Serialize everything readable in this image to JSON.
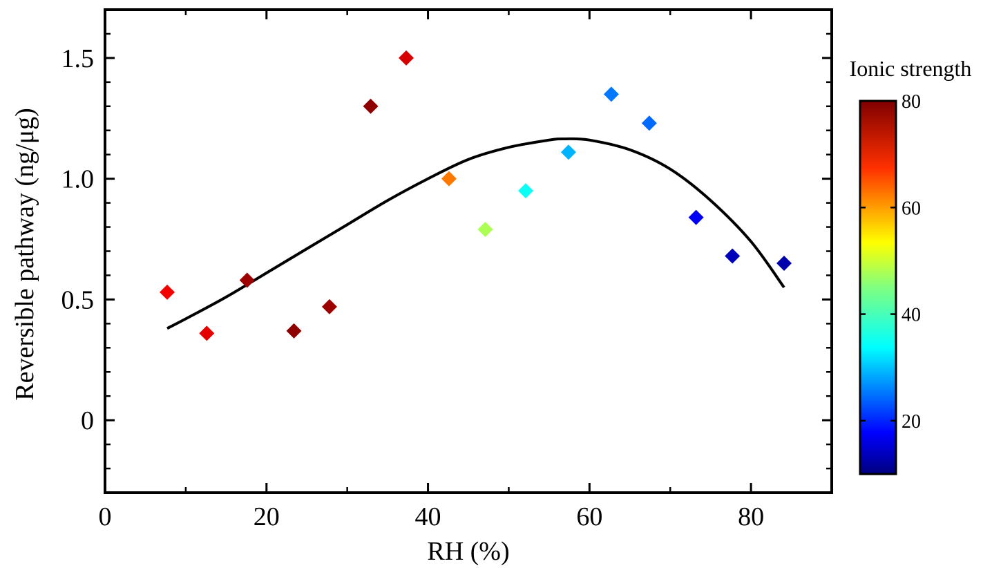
{
  "chart_data": {
    "type": "scatter",
    "title": "",
    "xlabel": "RH (%)",
    "ylabel": "Reversible pathway (ng/μg)",
    "xlim": [
      0,
      90
    ],
    "ylim": [
      -0.3,
      1.7
    ],
    "x_ticks": [
      0,
      20,
      40,
      60,
      80
    ],
    "x_tick_labels": [
      "0",
      "20",
      "40",
      "60",
      "80"
    ],
    "y_ticks": [
      0,
      0.5,
      1.0,
      1.5
    ],
    "y_tick_labels": [
      "0",
      "0.5",
      "1.0",
      "1.5"
    ],
    "grid": false,
    "marker": "diamond",
    "color_by": "Ionic strength",
    "colorbar": {
      "label": "Ionic strength",
      "range": [
        10,
        80
      ],
      "ticks": [
        20,
        40,
        60,
        80
      ],
      "tick_labels": [
        "20",
        "40",
        "60",
        "80"
      ],
      "colormap": "jet",
      "position": "right"
    },
    "points": [
      {
        "x": 7.7,
        "y": 0.53,
        "ionic_strength": 72
      },
      {
        "x": 12.6,
        "y": 0.36,
        "ionic_strength": 73
      },
      {
        "x": 17.6,
        "y": 0.58,
        "ionic_strength": 78
      },
      {
        "x": 23.4,
        "y": 0.37,
        "ionic_strength": 79
      },
      {
        "x": 27.8,
        "y": 0.47,
        "ionic_strength": 78
      },
      {
        "x": 32.9,
        "y": 1.3,
        "ionic_strength": 79
      },
      {
        "x": 37.3,
        "y": 1.5,
        "ionic_strength": 74
      },
      {
        "x": 42.6,
        "y": 1.0,
        "ionic_strength": 63
      },
      {
        "x": 47.1,
        "y": 0.79,
        "ionic_strength": 48
      },
      {
        "x": 52.1,
        "y": 0.95,
        "ionic_strength": 37
      },
      {
        "x": 57.4,
        "y": 1.11,
        "ionic_strength": 31
      },
      {
        "x": 62.7,
        "y": 1.35,
        "ionic_strength": 27
      },
      {
        "x": 67.4,
        "y": 1.23,
        "ionic_strength": 26
      },
      {
        "x": 73.2,
        "y": 0.84,
        "ionic_strength": 18
      },
      {
        "x": 77.7,
        "y": 0.68,
        "ionic_strength": 14
      },
      {
        "x": 84.1,
        "y": 0.65,
        "ionic_strength": 13
      }
    ],
    "fit_line": {
      "x": [
        7.7,
        10,
        15,
        20,
        25,
        30,
        35,
        40,
        45,
        50,
        55,
        57,
        60,
        65,
        70,
        75,
        80,
        84.1
      ],
      "y": [
        0.38,
        0.42,
        0.51,
        0.61,
        0.71,
        0.81,
        0.91,
        1.0,
        1.08,
        1.13,
        1.16,
        1.165,
        1.16,
        1.12,
        1.04,
        0.91,
        0.74,
        0.55
      ]
    },
    "colors": {
      "line": "#000000",
      "axes": "#000000"
    }
  }
}
